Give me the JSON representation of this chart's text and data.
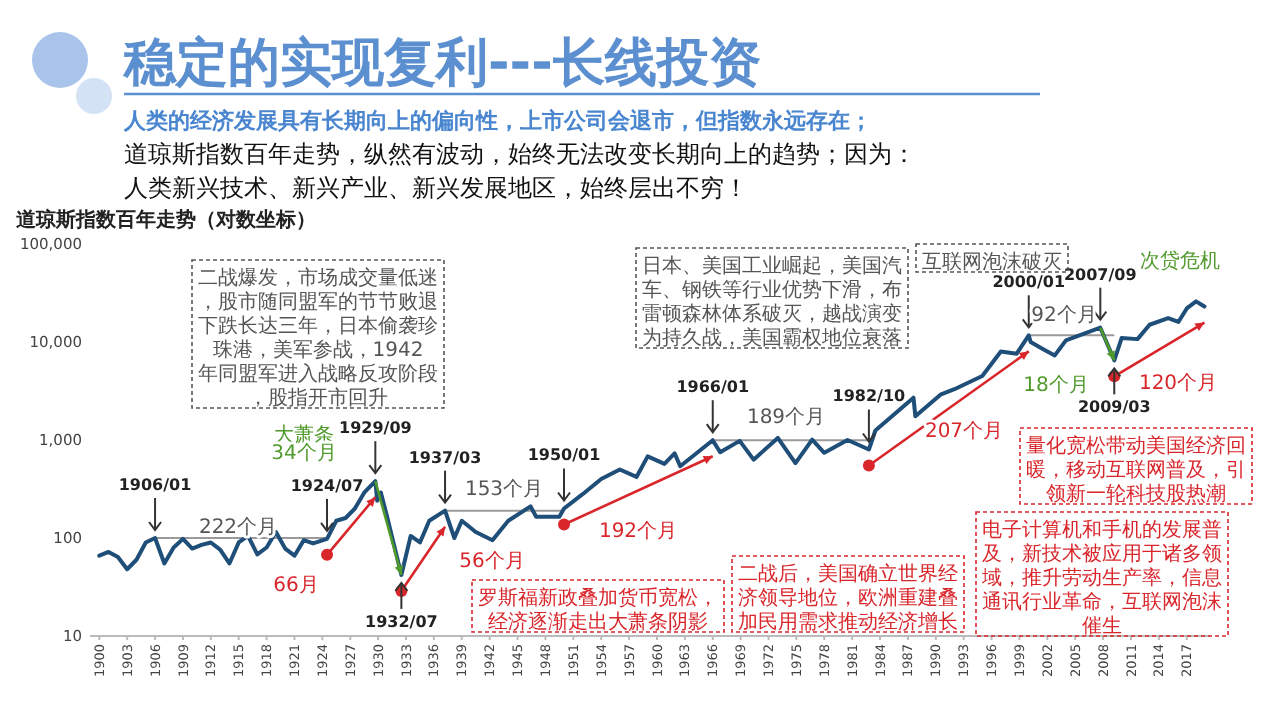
{
  "chart_data": {
    "type": "line",
    "title": "稳定的实现复利---长线投资",
    "subtitle": "人类的经济发展具有长期向上的偏向性，上市公司会退市，但指数永远存在；",
    "annotations": [
      "道琼斯指数百年走势，纵然有波动，始终无法改变长期向上的趋势；因为：",
      "人类新兴技术、新兴产业、新兴发展地区，始终层出不穷！",
      "道琼斯指数百年走势（对数坐标）",
      {
        "text": "1906/01",
        "x": 1906.0,
        "y": 100
      },
      {
        "text": "1924/07",
        "x": 1924.5,
        "y": 98
      },
      {
        "text": "1929/09",
        "x": 1929.7,
        "y": 380
      },
      {
        "text": "1932/07",
        "x": 1932.5,
        "y": 42
      },
      {
        "text": "1937/03",
        "x": 1937.2,
        "y": 190
      },
      {
        "text": "1950/01",
        "x": 1950.0,
        "y": 200
      },
      {
        "text": "1966/01",
        "x": 1966.0,
        "y": 995
      },
      {
        "text": "1982/10",
        "x": 1982.8,
        "y": 800
      },
      {
        "text": "2000/01",
        "x": 2000.0,
        "y": 11700
      },
      {
        "text": "2007/09",
        "x": 2007.7,
        "y": 14000
      },
      {
        "text": "2009/03",
        "x": 2009.2,
        "y": 6500
      },
      "222个月",
      "66月",
      "大萧条",
      "34个月",
      "56个月",
      "153个月",
      "192个月",
      "189个月",
      "207个月",
      "92个月",
      "18个月",
      "次贷危机",
      "120个月",
      "二战爆发，市场成交量低迷，股市随同盟军的节节败退下跌长达三年，日本偷袭珍珠港，美军参战，1942年同盟军进入战略反攻阶段，股指开市回升",
      "日本、美国工业崛起，美国汽车、钢铁等行业优势下滑，布雷顿森林体系破灭，越战演变为持久战，美国霸权地位衰落",
      "互联网泡沫破灭",
      "罗斯福新政叠加货币宽松，经济逐渐走出大萧条阴影",
      "二战后，美国确立世界经济领导地位，欧洲重建叠加民用需求推动经济增长",
      "电子计算机和手机的发展普及，新技术被应用于诸多领域，推升劳动生产率，信息通讯行业革命，互联网泡沫催生",
      "量化宽松带动美国经济回暖，移动互联网普及，引领新一轮科技股热潮"
    ],
    "x": [
      1900,
      1901,
      1902,
      1903,
      1904,
      1905,
      1906,
      1907,
      1908,
      1909,
      1910,
      1911,
      1912,
      1913,
      1914,
      1915,
      1916,
      1917,
      1918,
      1919,
      1920,
      1921,
      1922,
      1923,
      1924.5,
      1925.5,
      1926.5,
      1927.5,
      1928.5,
      1929.7,
      1929.9,
      1930.3,
      1931,
      1932.5,
      1933.5,
      1934.5,
      1935.5,
      1937.2,
      1938.2,
      1939,
      1940.5,
      1942.3,
      1944,
      1946.4,
      1947,
      1949.5,
      1950,
      1952,
      1954,
      1956,
      1957.8,
      1959,
      1960.8,
      1961.9,
      1962.5,
      1966,
      1966.8,
      1968.9,
      1970.4,
      1973,
      1974.9,
      1976.7,
      1978,
      1980.5,
      1982.8,
      1983.5,
      1987.6,
      1987.8,
      1990.5,
      1992,
      1995,
      1997,
      1998.7,
      2000.0,
      2000.2,
      2001.7,
      2002.8,
      2004,
      2007.7,
      2009.2,
      2010,
      2011.7,
      2013,
      2015,
      2016.1,
      2017,
      2018,
      2018.9
    ],
    "series": [
      {
        "color": "#1f4e79",
        "values": [
          66,
          72,
          64,
          48,
          60,
          90,
          100,
          55,
          80,
          98,
          78,
          85,
          90,
          76,
          55,
          90,
          105,
          68,
          80,
          115,
          78,
          66,
          95,
          88,
          98,
          150,
          160,
          200,
          290,
          380,
          240,
          290,
          160,
          42,
          105,
          90,
          150,
          190,
          100,
          150,
          115,
          95,
          150,
          210,
          165,
          165,
          200,
          280,
          400,
          500,
          420,
          680,
          570,
          730,
          540,
          995,
          750,
          980,
          630,
          1050,
          580,
          1010,
          740,
          1000,
          800,
          1250,
          2700,
          1750,
          2900,
          3300,
          4500,
          8000,
          7600,
          11700,
          10000,
          8300,
          7300,
          10400,
          14000,
          6500,
          11000,
          10700,
          15000,
          17500,
          16000,
          22000,
          26000,
          23000
        ]
      }
    ],
    "xlim": [
      1899,
      2019.5
    ],
    "xticks": [
      1900,
      1903,
      1906,
      1909,
      1912,
      1915,
      1918,
      1921,
      1924,
      1927,
      1930,
      1933,
      1936,
      1939,
      1942,
      1945,
      1948,
      1951,
      1954,
      1957,
      1960,
      1963,
      1966,
      1969,
      1972,
      1975,
      1978,
      1981,
      1984,
      1987,
      1990,
      1993,
      1996,
      1999,
      2002,
      2005,
      2008,
      2011,
      2014,
      2017
    ],
    "ylim": [
      10,
      100000
    ],
    "yticks": [
      10,
      100,
      {
        "value": 1000,
        "label": "1,000"
      },
      {
        "value": 10000,
        "label": "10,000"
      },
      {
        "value": 100000,
        "label": "100,000"
      }
    ],
    "log": true,
    "grid": false
  }
}
